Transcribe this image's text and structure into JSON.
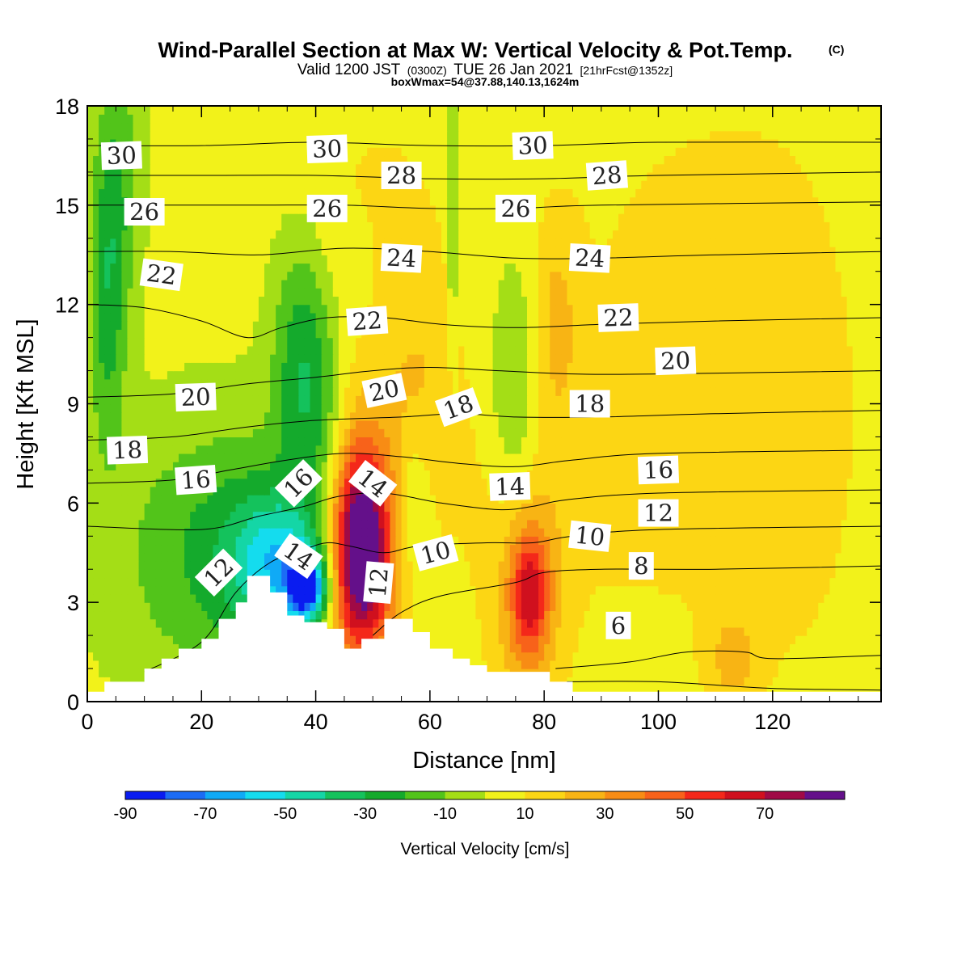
{
  "title": "Wind-Parallel Section at Max W: Vertical Velocity & Pot.Temp.",
  "title_mark": "(C)",
  "subtitle_parts": [
    "Valid 1200 JST",
    "(0300Z)",
    "TUE 26 Jan 2021",
    "[21hrFcst@1352z]"
  ],
  "subtitle2": "boxWmax=54@37.88,140.13,1624m",
  "chart_data": {
    "type": "heatmap",
    "xlabel": "Distance [nm]",
    "ylabel": "Height [Kft MSL]",
    "xlim": [
      0,
      139
    ],
    "ylim": [
      0,
      18
    ],
    "x_ticks": [
      0,
      20,
      40,
      60,
      80,
      100,
      120
    ],
    "y_ticks": [
      0,
      3,
      6,
      9,
      12,
      15,
      18
    ],
    "colorbar": {
      "label": "Vertical Velocity [cm/s]",
      "ticks": [
        -90,
        -70,
        -50,
        -30,
        -10,
        10,
        30,
        50,
        70
      ],
      "bounds": [
        -90,
        -80,
        -70,
        -60,
        -50,
        -40,
        -30,
        -20,
        -10,
        0,
        10,
        20,
        30,
        40,
        50,
        60,
        70,
        80
      ],
      "colors": [
        "#0a1cf0",
        "#1c6cf5",
        "#10aaf6",
        "#14dcee",
        "#14d6a6",
        "#14c25c",
        "#14aa2c",
        "#52c41a",
        "#a4de16",
        "#f2f21a",
        "#fcd614",
        "#f8b414",
        "#f88c14",
        "#f8621a",
        "#f4281a",
        "#d0101e",
        "#a00a46",
        "#64108a"
      ]
    },
    "terrain": [
      [
        0,
        0.3
      ],
      [
        3,
        0.3
      ],
      [
        3,
        0.6
      ],
      [
        10,
        0.6
      ],
      [
        10,
        1.0
      ],
      [
        13,
        1.0
      ],
      [
        13,
        1.3
      ],
      [
        16,
        1.3
      ],
      [
        16,
        1.6
      ],
      [
        20,
        1.6
      ],
      [
        20,
        1.9
      ],
      [
        23,
        1.9
      ],
      [
        23,
        2.5
      ],
      [
        26,
        2.5
      ],
      [
        26,
        3.0
      ],
      [
        28,
        3.0
      ],
      [
        28,
        3.8
      ],
      [
        32,
        3.8
      ],
      [
        32,
        3.3
      ],
      [
        35,
        3.3
      ],
      [
        35,
        2.6
      ],
      [
        38,
        2.6
      ],
      [
        38,
        2.4
      ],
      [
        42,
        2.4
      ],
      [
        42,
        2.2
      ],
      [
        45,
        2.2
      ],
      [
        45,
        1.6
      ],
      [
        48,
        1.6
      ],
      [
        48,
        1.9
      ],
      [
        52,
        1.9
      ],
      [
        52,
        2.5
      ],
      [
        57,
        2.5
      ],
      [
        57,
        2.1
      ],
      [
        60,
        2.1
      ],
      [
        60,
        1.6
      ],
      [
        64,
        1.6
      ],
      [
        64,
        1.3
      ],
      [
        67,
        1.3
      ],
      [
        67,
        1.1
      ],
      [
        70,
        1.1
      ],
      [
        70,
        0.9
      ],
      [
        81,
        0.9
      ],
      [
        81,
        0.6
      ],
      [
        85,
        0.6
      ],
      [
        85,
        0.3
      ],
      [
        139,
        0.3
      ]
    ],
    "w_features": [
      {
        "x": 48,
        "y": 4.6,
        "w": 74,
        "rx": 3.2,
        "ry": 1.9
      },
      {
        "x": 47.5,
        "y": 4.5,
        "w": 40,
        "rx": 5.5,
        "ry": 3.2
      },
      {
        "x": 77.5,
        "y": 3.3,
        "w": 42,
        "rx": 2.3,
        "ry": 1.3
      },
      {
        "x": 77,
        "y": 3.0,
        "w": 22,
        "rx": 4.5,
        "ry": 3.0
      },
      {
        "x": 38.5,
        "y": 3.4,
        "w": -75,
        "rx": 2.4,
        "ry": 0.7
      },
      {
        "x": 34,
        "y": 4.2,
        "w": -42,
        "rx": 6.0,
        "ry": 1.4
      },
      {
        "x": 26,
        "y": 4.5,
        "w": -28,
        "rx": 14,
        "ry": 2.8
      },
      {
        "x": 37,
        "y": 10.5,
        "w": -26,
        "rx": 3.4,
        "ry": 2.6
      },
      {
        "x": 41,
        "y": 8.5,
        "w": -20,
        "rx": 3.0,
        "ry": 2.3
      },
      {
        "x": 3.5,
        "y": 12.0,
        "w": -26,
        "rx": 2.3,
        "ry": 3.2
      },
      {
        "x": 5.5,
        "y": 16.0,
        "w": -18,
        "rx": 2.8,
        "ry": 3.0
      },
      {
        "x": 75,
        "y": 9.0,
        "w": -20,
        "rx": 3.2,
        "ry": 3.0
      },
      {
        "x": 57,
        "y": 6.0,
        "w": -16,
        "rx": 2.2,
        "ry": 1.6
      },
      {
        "x": 64,
        "y": 15.5,
        "w": -22,
        "rx": 0.6,
        "ry": 3.4
      },
      {
        "x": 58,
        "y": 10.0,
        "w": 14,
        "rx": 5,
        "ry": 2.6
      },
      {
        "x": 82,
        "y": 11.5,
        "w": 16,
        "rx": 3,
        "ry": 2.2
      },
      {
        "x": 113,
        "y": 1.3,
        "w": 18,
        "rx": 3,
        "ry": 0.9
      },
      {
        "x": 100,
        "y": 11,
        "w": 8,
        "rx": 18,
        "ry": 7
      },
      {
        "x": 125,
        "y": 8,
        "w": 7,
        "rx": 14,
        "ry": 9
      },
      {
        "x": 50,
        "y": 16,
        "w": 7,
        "rx": 12,
        "ry": 2.5
      },
      {
        "x": 70,
        "y": 6,
        "w": 6,
        "rx": 20,
        "ry": 3
      }
    ],
    "isentropes": [
      {
        "theta": 6,
        "pts": [
          [
            84,
            0.6
          ],
          [
            100,
            0.6
          ],
          [
            120,
            0.4
          ],
          [
            139,
            0.35
          ]
        ]
      },
      {
        "theta": 8,
        "pts": [
          [
            82,
            1.0
          ],
          [
            95,
            1.2
          ],
          [
            105,
            1.5
          ],
          [
            115,
            1.5
          ],
          [
            120,
            1.3
          ],
          [
            139,
            1.4
          ]
        ]
      },
      {
        "theta": 10,
        "pts": [
          [
            50,
            2.0
          ],
          [
            55,
            2.7
          ],
          [
            62,
            3.2
          ],
          [
            75,
            3.6
          ],
          [
            80,
            3.9
          ],
          [
            90,
            4.0
          ],
          [
            110,
            4.0
          ],
          [
            139,
            4.1
          ]
        ]
      },
      {
        "theta": 12,
        "pts": [
          [
            10,
            0.9
          ],
          [
            20,
            1.8
          ],
          [
            26,
            3.3
          ],
          [
            32,
            4.2
          ],
          [
            38,
            4.6
          ],
          [
            42,
            4.8
          ],
          [
            46,
            4.7
          ],
          [
            52,
            4.5
          ],
          [
            58,
            4.7
          ],
          [
            70,
            4.8
          ],
          [
            78,
            4.8
          ],
          [
            85,
            5.0
          ],
          [
            100,
            5.2
          ],
          [
            139,
            5.3
          ]
        ]
      },
      {
        "theta": 14,
        "pts": [
          [
            0,
            5.3
          ],
          [
            20,
            5.2
          ],
          [
            30,
            5.6
          ],
          [
            38,
            5.9
          ],
          [
            44,
            6.2
          ],
          [
            52,
            6.3
          ],
          [
            62,
            6.0
          ],
          [
            72,
            5.8
          ],
          [
            78,
            5.9
          ],
          [
            84,
            6.1
          ],
          [
            100,
            6.3
          ],
          [
            139,
            6.4
          ]
        ]
      },
      {
        "theta": 16,
        "pts": [
          [
            0,
            6.6
          ],
          [
            15,
            6.7
          ],
          [
            25,
            7.0
          ],
          [
            35,
            7.3
          ],
          [
            45,
            7.5
          ],
          [
            55,
            7.4
          ],
          [
            65,
            7.2
          ],
          [
            75,
            7.1
          ],
          [
            85,
            7.3
          ],
          [
            100,
            7.5
          ],
          [
            139,
            7.6
          ]
        ]
      },
      {
        "theta": 18,
        "pts": [
          [
            0,
            7.9
          ],
          [
            15,
            8.0
          ],
          [
            28,
            8.3
          ],
          [
            40,
            8.5
          ],
          [
            55,
            8.6
          ],
          [
            65,
            8.7
          ],
          [
            75,
            8.6
          ],
          [
            90,
            8.6
          ],
          [
            110,
            8.7
          ],
          [
            139,
            8.8
          ]
        ]
      },
      {
        "theta": 20,
        "pts": [
          [
            0,
            9.2
          ],
          [
            15,
            9.3
          ],
          [
            28,
            9.6
          ],
          [
            40,
            9.8
          ],
          [
            50,
            10.0
          ],
          [
            60,
            10.1
          ],
          [
            72,
            10.0
          ],
          [
            85,
            9.9
          ],
          [
            100,
            9.9
          ],
          [
            139,
            10.0
          ]
        ]
      },
      {
        "theta": 22,
        "pts": [
          [
            0,
            12.0
          ],
          [
            10,
            11.9
          ],
          [
            20,
            11.5
          ],
          [
            28,
            11.0
          ],
          [
            34,
            11.3
          ],
          [
            42,
            11.6
          ],
          [
            52,
            11.6
          ],
          [
            62,
            11.4
          ],
          [
            75,
            11.3
          ],
          [
            90,
            11.4
          ],
          [
            110,
            11.5
          ],
          [
            139,
            11.6
          ]
        ]
      },
      {
        "theta": 24,
        "pts": [
          [
            0,
            13.6
          ],
          [
            15,
            13.6
          ],
          [
            30,
            13.5
          ],
          [
            45,
            13.7
          ],
          [
            60,
            13.6
          ],
          [
            75,
            13.4
          ],
          [
            90,
            13.4
          ],
          [
            110,
            13.5
          ],
          [
            139,
            13.6
          ]
        ]
      },
      {
        "theta": 26,
        "pts": [
          [
            0,
            15.0
          ],
          [
            15,
            15.0
          ],
          [
            30,
            15.0
          ],
          [
            45,
            15.0
          ],
          [
            60,
            14.9
          ],
          [
            75,
            14.9
          ],
          [
            90,
            15.0
          ],
          [
            139,
            15.1
          ]
        ]
      },
      {
        "theta": 28,
        "pts": [
          [
            0,
            15.9
          ],
          [
            20,
            15.9
          ],
          [
            40,
            15.9
          ],
          [
            60,
            15.8
          ],
          [
            80,
            15.8
          ],
          [
            100,
            15.9
          ],
          [
            139,
            16.0
          ]
        ]
      },
      {
        "theta": 30,
        "pts": [
          [
            0,
            16.8
          ],
          [
            20,
            16.8
          ],
          [
            40,
            16.9
          ],
          [
            60,
            16.8
          ],
          [
            80,
            16.8
          ],
          [
            100,
            16.9
          ],
          [
            139,
            16.9
          ]
        ]
      }
    ],
    "isentrope_labels": [
      {
        "text": "30",
        "x": 6,
        "y": 16.5,
        "angle": -2
      },
      {
        "text": "30",
        "x": 42,
        "y": 16.7,
        "angle": -2
      },
      {
        "text": "30",
        "x": 78,
        "y": 16.8,
        "angle": -2
      },
      {
        "text": "28",
        "x": 55,
        "y": 15.9,
        "angle": 0
      },
      {
        "text": "28",
        "x": 91,
        "y": 15.9,
        "angle": -4
      },
      {
        "text": "26",
        "x": 10,
        "y": 14.8,
        "angle": 0
      },
      {
        "text": "26",
        "x": 42,
        "y": 14.9,
        "angle": 0
      },
      {
        "text": "26",
        "x": 75,
        "y": 14.9,
        "angle": 0
      },
      {
        "text": "24",
        "x": 55,
        "y": 13.4,
        "angle": 3
      },
      {
        "text": "24",
        "x": 88,
        "y": 13.4,
        "angle": 3
      },
      {
        "text": "22",
        "x": 13,
        "y": 12.9,
        "angle": 8
      },
      {
        "text": "22",
        "x": 49,
        "y": 11.5,
        "angle": -4
      },
      {
        "text": "22",
        "x": 93,
        "y": 11.6,
        "angle": -2
      },
      {
        "text": "20",
        "x": 19,
        "y": 9.2,
        "angle": -2
      },
      {
        "text": "20",
        "x": 52,
        "y": 9.4,
        "angle": -12
      },
      {
        "text": "20",
        "x": 103,
        "y": 10.3,
        "angle": -2
      },
      {
        "text": "18",
        "x": 7,
        "y": 7.6,
        "angle": -2
      },
      {
        "text": "18",
        "x": 65,
        "y": 8.9,
        "angle": -20
      },
      {
        "text": "18",
        "x": 88,
        "y": 9.0,
        "angle": 0
      },
      {
        "text": "16",
        "x": 19,
        "y": 6.7,
        "angle": -4
      },
      {
        "text": "16",
        "x": 37,
        "y": 6.6,
        "angle": -45
      },
      {
        "text": "16",
        "x": 100,
        "y": 7.0,
        "angle": -2
      },
      {
        "text": "14",
        "x": 50,
        "y": 6.6,
        "angle": 38
      },
      {
        "text": "14",
        "x": 74,
        "y": 6.5,
        "angle": -2
      },
      {
        "text": "14",
        "x": 37,
        "y": 4.4,
        "angle": 35
      },
      {
        "text": "12",
        "x": 23,
        "y": 3.9,
        "angle": -45
      },
      {
        "text": "12",
        "x": 51,
        "y": 3.6,
        "angle": -85
      },
      {
        "text": "12",
        "x": 100,
        "y": 5.7,
        "angle": 0
      },
      {
        "text": "10",
        "x": 61,
        "y": 4.5,
        "angle": -15
      },
      {
        "text": "10",
        "x": 88,
        "y": 5.0,
        "angle": 6
      },
      {
        "text": "8",
        "x": 97,
        "y": 4.1,
        "angle": 0
      },
      {
        "text": "6",
        "x": 93,
        "y": 2.3,
        "angle": 0
      }
    ]
  }
}
